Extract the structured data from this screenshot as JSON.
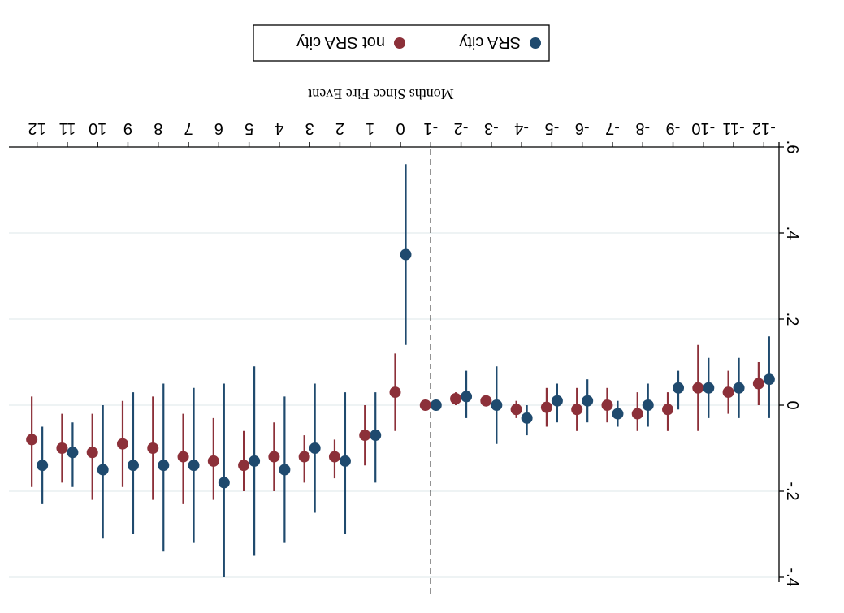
{
  "chart_data": {
    "type": "scatter",
    "title": "",
    "xlabel": "Months Since Fire Event",
    "ylabel": "",
    "x_ticks": [
      -12,
      -11,
      -10,
      -9,
      -8,
      -7,
      -6,
      -5,
      -4,
      -3,
      -2,
      -1,
      0,
      1,
      2,
      3,
      4,
      5,
      6,
      7,
      8,
      9,
      10,
      11,
      12
    ],
    "y_ticks": [
      -0.4,
      -0.2,
      0,
      0.2,
      0.4,
      0.6
    ],
    "y_tick_labels": [
      "-.4",
      "-.2",
      "0",
      ".2",
      ".4",
      ".6"
    ],
    "ylim": [
      -0.4,
      0.6
    ],
    "reference_line_x": -1,
    "grid": true,
    "legend": {
      "placement": "bottom",
      "entries": [
        "SRA city",
        "not SRA city"
      ]
    },
    "colors": {
      "SRA city": "#1f4a6e",
      "not SRA city": "#8c3039"
    },
    "series": [
      {
        "name": "SRA city",
        "color": "#1f4a6e",
        "points": [
          {
            "x": -12,
            "y": 0.06,
            "lo": -0.03,
            "hi": 0.16
          },
          {
            "x": -11,
            "y": 0.04,
            "lo": -0.03,
            "hi": 0.11
          },
          {
            "x": -10,
            "y": 0.04,
            "lo": -0.03,
            "hi": 0.11
          },
          {
            "x": -9,
            "y": 0.04,
            "lo": -0.01,
            "hi": 0.08
          },
          {
            "x": -8,
            "y": 0.0,
            "lo": -0.05,
            "hi": 0.05
          },
          {
            "x": -7,
            "y": -0.02,
            "lo": -0.05,
            "hi": 0.01
          },
          {
            "x": -6,
            "y": 0.01,
            "lo": -0.04,
            "hi": 0.06
          },
          {
            "x": -5,
            "y": 0.01,
            "lo": -0.04,
            "hi": 0.05
          },
          {
            "x": -4,
            "y": -0.03,
            "lo": -0.07,
            "hi": 0.0
          },
          {
            "x": -3,
            "y": 0.0,
            "lo": -0.09,
            "hi": 0.09
          },
          {
            "x": -2,
            "y": 0.02,
            "lo": -0.03,
            "hi": 0.08
          },
          {
            "x": -1,
            "y": 0.0,
            "lo": 0.0,
            "hi": 0.0
          },
          {
            "x": 0,
            "y": 0.35,
            "lo": 0.14,
            "hi": 0.56
          },
          {
            "x": 1,
            "y": -0.07,
            "lo": -0.18,
            "hi": 0.03
          },
          {
            "x": 2,
            "y": -0.13,
            "lo": -0.3,
            "hi": 0.03
          },
          {
            "x": 3,
            "y": -0.1,
            "lo": -0.25,
            "hi": 0.05
          },
          {
            "x": 4,
            "y": -0.15,
            "lo": -0.32,
            "hi": 0.02
          },
          {
            "x": 5,
            "y": -0.13,
            "lo": -0.35,
            "hi": 0.09
          },
          {
            "x": 6,
            "y": -0.18,
            "lo": -0.4,
            "hi": 0.05
          },
          {
            "x": 7,
            "y": -0.14,
            "lo": -0.32,
            "hi": 0.04
          },
          {
            "x": 8,
            "y": -0.14,
            "lo": -0.34,
            "hi": 0.05
          },
          {
            "x": 9,
            "y": -0.14,
            "lo": -0.3,
            "hi": 0.03
          },
          {
            "x": 10,
            "y": -0.15,
            "lo": -0.31,
            "hi": 0.0
          },
          {
            "x": 11,
            "y": -0.11,
            "lo": -0.19,
            "hi": -0.04
          },
          {
            "x": 12,
            "y": -0.14,
            "lo": -0.23,
            "hi": -0.05
          }
        ]
      },
      {
        "name": "not SRA city",
        "color": "#8c3039",
        "points": [
          {
            "x": -12,
            "y": 0.05,
            "lo": 0.0,
            "hi": 0.1
          },
          {
            "x": -11,
            "y": 0.03,
            "lo": -0.02,
            "hi": 0.08
          },
          {
            "x": -10,
            "y": 0.04,
            "lo": -0.06,
            "hi": 0.14
          },
          {
            "x": -9,
            "y": -0.01,
            "lo": -0.06,
            "hi": 0.03
          },
          {
            "x": -8,
            "y": -0.02,
            "lo": -0.06,
            "hi": 0.03
          },
          {
            "x": -7,
            "y": 0.0,
            "lo": -0.04,
            "hi": 0.04
          },
          {
            "x": -6,
            "y": -0.01,
            "lo": -0.06,
            "hi": 0.04
          },
          {
            "x": -5,
            "y": -0.005,
            "lo": -0.05,
            "hi": 0.04
          },
          {
            "x": -4,
            "y": -0.01,
            "lo": -0.03,
            "hi": 0.01
          },
          {
            "x": -3,
            "y": 0.01,
            "lo": 0.0,
            "hi": 0.02
          },
          {
            "x": -2,
            "y": 0.015,
            "lo": 0.0,
            "hi": 0.03
          },
          {
            "x": -1,
            "y": 0.0,
            "lo": 0.0,
            "hi": 0.0
          },
          {
            "x": 0,
            "y": 0.03,
            "lo": -0.06,
            "hi": 0.12
          },
          {
            "x": 1,
            "y": -0.07,
            "lo": -0.14,
            "hi": 0.0
          },
          {
            "x": 2,
            "y": -0.12,
            "lo": -0.17,
            "hi": -0.08
          },
          {
            "x": 3,
            "y": -0.12,
            "lo": -0.18,
            "hi": -0.07
          },
          {
            "x": 4,
            "y": -0.12,
            "lo": -0.2,
            "hi": -0.04
          },
          {
            "x": 5,
            "y": -0.14,
            "lo": -0.2,
            "hi": -0.06
          },
          {
            "x": 6,
            "y": -0.13,
            "lo": -0.22,
            "hi": -0.03
          },
          {
            "x": 7,
            "y": -0.12,
            "lo": -0.23,
            "hi": -0.02
          },
          {
            "x": 8,
            "y": -0.1,
            "lo": -0.22,
            "hi": 0.02
          },
          {
            "x": 9,
            "y": -0.09,
            "lo": -0.19,
            "hi": 0.01
          },
          {
            "x": 10,
            "y": -0.11,
            "lo": -0.22,
            "hi": -0.02
          },
          {
            "x": 11,
            "y": -0.1,
            "lo": -0.18,
            "hi": -0.02
          },
          {
            "x": 12,
            "y": -0.08,
            "lo": -0.19,
            "hi": 0.02
          }
        ]
      }
    ]
  }
}
